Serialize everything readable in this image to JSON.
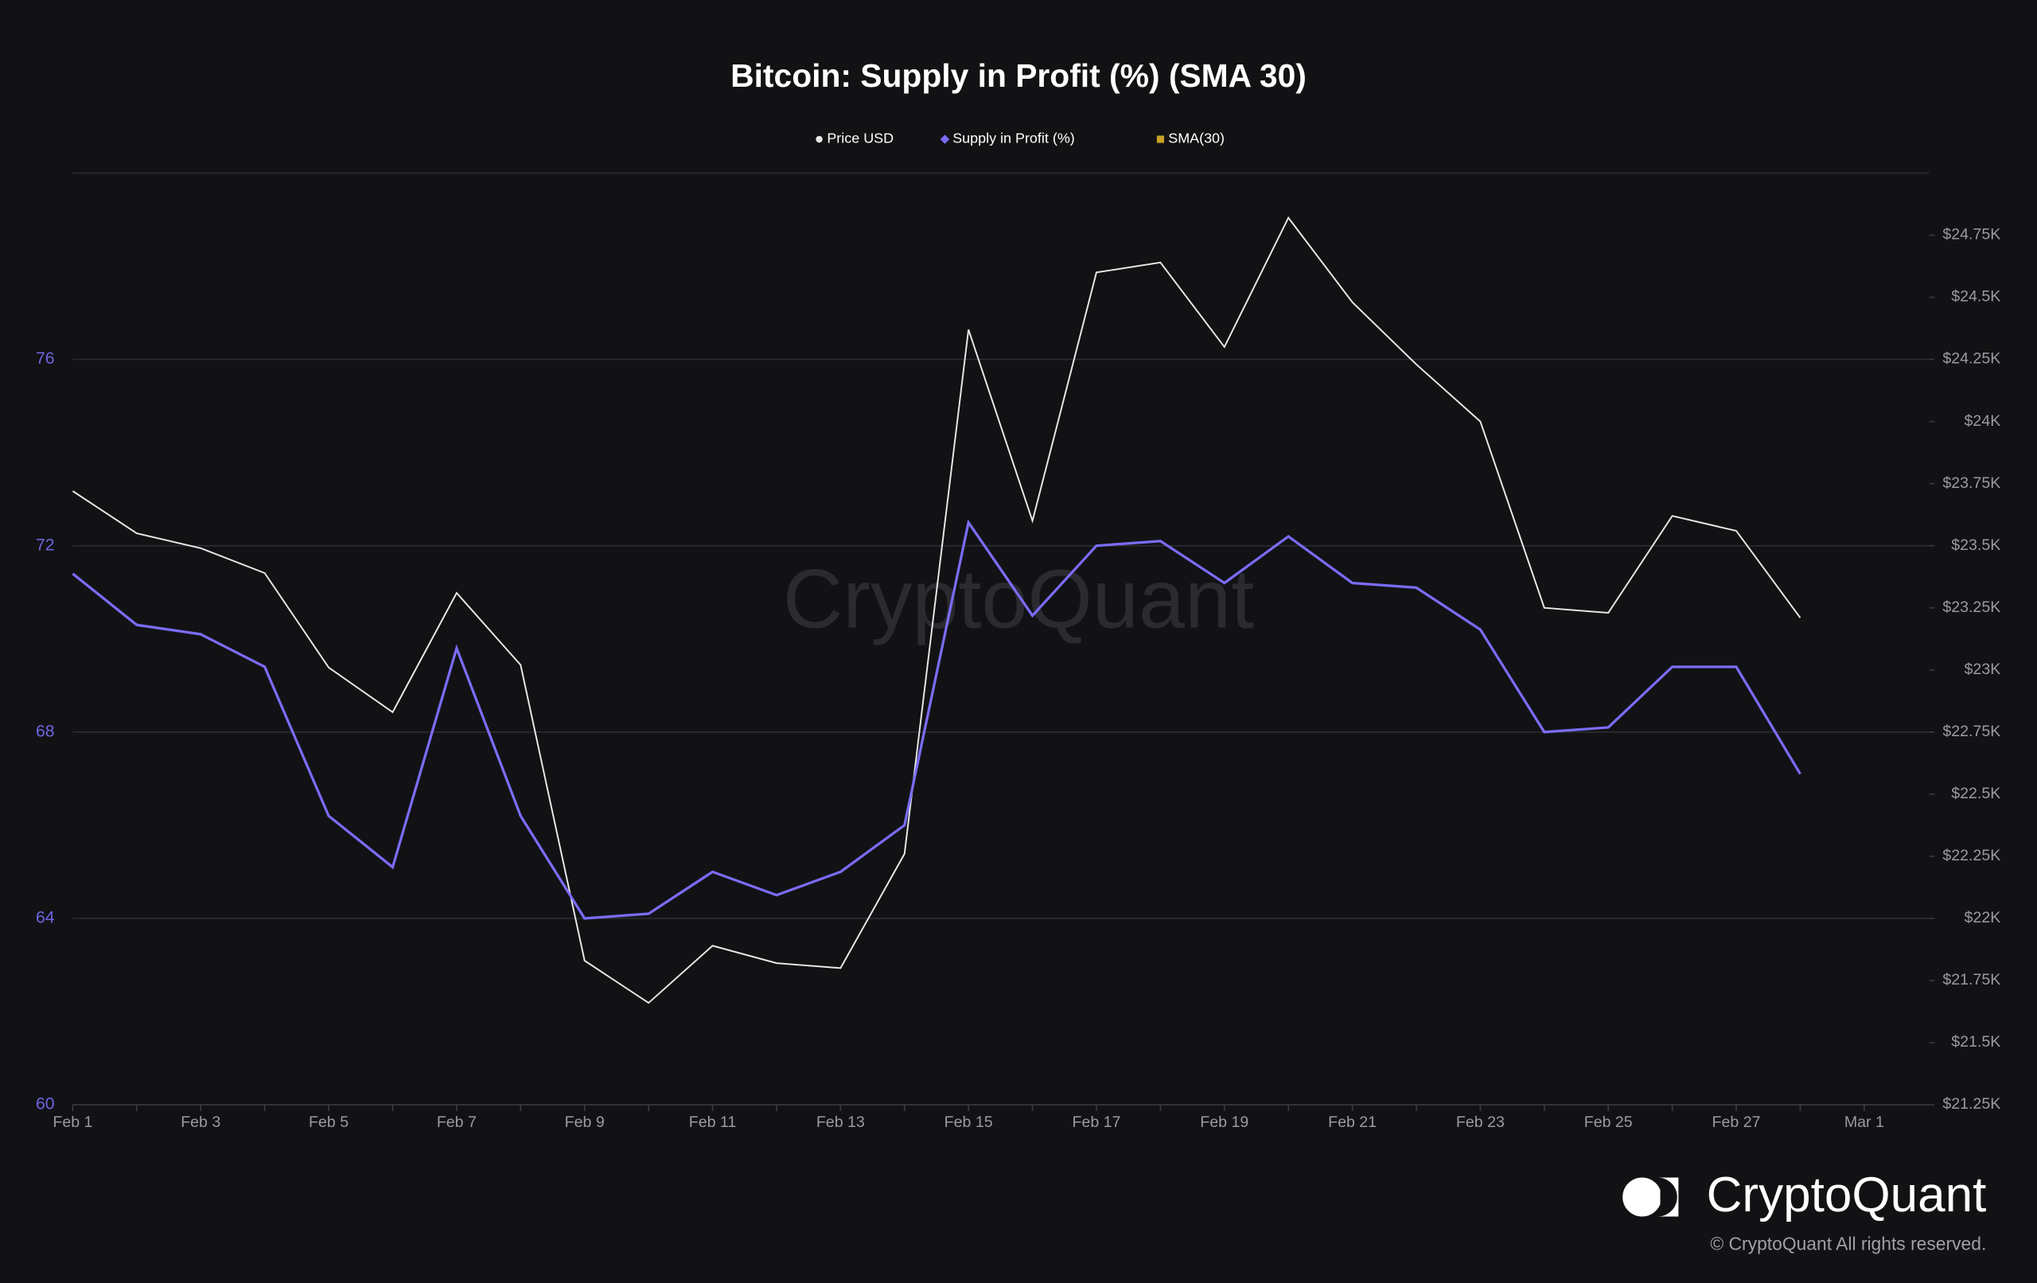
{
  "chart_data": {
    "type": "line",
    "title": "Bitcoin: Supply in Profit (%) (SMA 30)",
    "categories": [
      "Feb 1",
      null,
      "Feb 3",
      null,
      "Feb 5",
      null,
      "Feb 7",
      null,
      "Feb 9",
      null,
      "Feb 11",
      null,
      "Feb 13",
      null,
      "Feb 15",
      null,
      "Feb 17",
      null,
      "Feb 19",
      null,
      "Feb 21",
      null,
      "Feb 23",
      null,
      "Feb 25",
      null,
      "Feb 27",
      null,
      "Mar 1"
    ],
    "series": [
      {
        "name": "Price USD",
        "color": "#e8e8e8",
        "axis": "y2",
        "marker": "circle",
        "values": [
          23720,
          23550,
          23490,
          23390,
          23010,
          22830,
          23310,
          23020,
          21830,
          21660,
          21890,
          21820,
          21800,
          22260,
          24370,
          23600,
          24600,
          24640,
          24300,
          24820,
          24480,
          24230,
          24000,
          23250,
          23230,
          23620,
          23560,
          23210,
          null
        ]
      },
      {
        "name": "Supply in Profit (%)",
        "color": "#7b6cf6",
        "marker": "diamond",
        "values": [
          71.4,
          70.3,
          70.1,
          69.4,
          66.2,
          65.1,
          69.8,
          66.2,
          64.0,
          64.1,
          65.0,
          64.5,
          65.0,
          66.0,
          72.5,
          70.5,
          72.0,
          72.1,
          71.2,
          72.2,
          71.2,
          71.1,
          70.2,
          68.0,
          68.1,
          69.4,
          69.4,
          67.1,
          null
        ]
      },
      {
        "name": "SMA(30)",
        "color": "#c9a227",
        "marker": "square",
        "values": [
          null,
          null,
          null,
          null,
          null,
          null,
          null,
          null,
          null,
          null,
          null,
          null,
          null,
          null,
          null,
          null,
          null,
          null,
          null,
          null,
          null,
          null,
          null,
          null,
          null,
          null,
          null,
          null,
          null
        ]
      }
    ],
    "ylim": [
      60,
      80
    ],
    "yticks": [
      60,
      64,
      68,
      72,
      76
    ],
    "y2lim": [
      21250,
      25000
    ],
    "y2ticks": [
      {
        "value": 21250,
        "label": "$21.25K"
      },
      {
        "value": 21500,
        "label": "$21.5K"
      },
      {
        "value": 21750,
        "label": "$21.75K"
      },
      {
        "value": 22000,
        "label": "$22K"
      },
      {
        "value": 22250,
        "label": "$22.25K"
      },
      {
        "value": 22500,
        "label": "$22.5K"
      },
      {
        "value": 22750,
        "label": "$22.75K"
      },
      {
        "value": 23000,
        "label": "$23K"
      },
      {
        "value": 23250,
        "label": "$23.25K"
      },
      {
        "value": 23500,
        "label": "$23.5K"
      },
      {
        "value": 23750,
        "label": "$23.75K"
      },
      {
        "value": 24000,
        "label": "$24K"
      },
      {
        "value": 24250,
        "label": "$24.25K"
      },
      {
        "value": 24500,
        "label": "$24.5K"
      },
      {
        "value": 24750,
        "label": "$24.75K"
      }
    ],
    "grid": true,
    "watermark": "CryptoQuant",
    "brand": "CryptoQuant",
    "copyright": "© CryptoQuant All rights reserved."
  }
}
